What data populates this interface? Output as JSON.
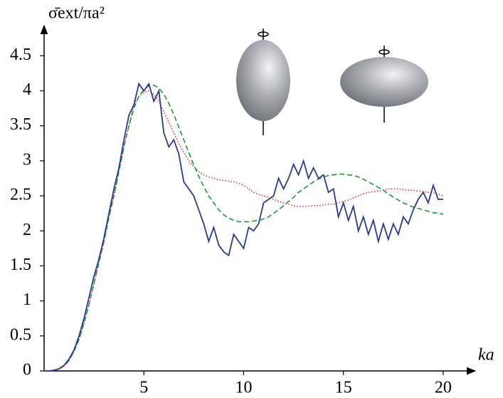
{
  "chart_data": {
    "type": "line",
    "xlabel": "ka",
    "ylabel": "σ̄ext/πa²",
    "x": [
      0,
      0.25,
      0.5,
      0.75,
      1,
      1.25,
      1.5,
      1.75,
      2,
      2.25,
      2.5,
      2.75,
      3,
      3.25,
      3.5,
      3.75,
      4,
      4.25,
      4.5,
      4.75,
      5,
      5.25,
      5.5,
      5.75,
      6,
      6.25,
      6.5,
      6.75,
      7,
      7.25,
      7.5,
      7.75,
      8,
      8.25,
      8.5,
      8.75,
      9,
      9.25,
      9.5,
      9.75,
      10,
      10.25,
      10.5,
      10.75,
      11,
      11.25,
      11.5,
      11.75,
      12,
      12.25,
      12.5,
      12.75,
      13,
      13.25,
      13.5,
      13.75,
      14,
      14.25,
      14.5,
      14.75,
      15,
      15.25,
      15.5,
      15.75,
      16,
      16.25,
      16.5,
      16.75,
      17,
      17.25,
      17.5,
      17.75,
      18,
      18.25,
      18.5,
      18.75,
      19,
      19.25,
      19.5,
      19.75,
      20
    ],
    "series": [
      {
        "color": "#2b3a8f",
        "dash": "none",
        "values": [
          0,
          0,
          0.01,
          0.03,
          0.08,
          0.17,
          0.3,
          0.5,
          0.75,
          1.05,
          1.35,
          1.6,
          1.9,
          2.25,
          2.6,
          2.9,
          3.3,
          3.65,
          3.8,
          4.1,
          4.0,
          4.1,
          3.85,
          4.0,
          3.4,
          3.2,
          3.3,
          3.1,
          2.7,
          2.6,
          2.5,
          2.3,
          2.1,
          1.85,
          2.05,
          1.8,
          1.7,
          1.65,
          1.95,
          1.85,
          1.75,
          2.05,
          2.0,
          2.1,
          2.4,
          2.45,
          2.5,
          2.75,
          2.6,
          2.75,
          2.95,
          2.8,
          3.0,
          2.75,
          2.9,
          2.75,
          2.8,
          2.55,
          2.6,
          2.2,
          2.4,
          2.15,
          2.35,
          2.0,
          2.2,
          1.95,
          2.15,
          1.85,
          2.1,
          1.88,
          2.1,
          1.95,
          2.2,
          2.1,
          2.3,
          2.45,
          2.55,
          2.4,
          2.65,
          2.45,
          2.45
        ]
      },
      {
        "color": "#1a9a3a",
        "dash": "7 4",
        "values": [
          0,
          0,
          0.01,
          0.03,
          0.07,
          0.15,
          0.28,
          0.45,
          0.68,
          0.95,
          1.25,
          1.55,
          1.85,
          2.2,
          2.5,
          2.85,
          3.2,
          3.5,
          3.75,
          3.92,
          4.02,
          4.07,
          4.08,
          4.04,
          3.95,
          3.82,
          3.66,
          3.48,
          3.3,
          3.12,
          2.94,
          2.78,
          2.63,
          2.5,
          2.4,
          2.3,
          2.23,
          2.18,
          2.15,
          2.13,
          2.13,
          2.13,
          2.14,
          2.15,
          2.17,
          2.2,
          2.25,
          2.3,
          2.36,
          2.42,
          2.48,
          2.55,
          2.6,
          2.65,
          2.7,
          2.74,
          2.77,
          2.79,
          2.8,
          2.81,
          2.81,
          2.8,
          2.79,
          2.77,
          2.74,
          2.7,
          2.66,
          2.62,
          2.58,
          2.53,
          2.48,
          2.44,
          2.4,
          2.37,
          2.34,
          2.32,
          2.3,
          2.28,
          2.26,
          2.25,
          2.24
        ]
      },
      {
        "color": "#e0303a",
        "dash": "1.5 2.5",
        "values": [
          0,
          0,
          0.01,
          0.03,
          0.07,
          0.15,
          0.28,
          0.45,
          0.68,
          0.95,
          1.25,
          1.55,
          1.85,
          2.2,
          2.5,
          2.85,
          3.2,
          3.5,
          3.8,
          3.92,
          3.98,
          4.0,
          3.95,
          3.85,
          3.7,
          3.55,
          3.4,
          3.25,
          3.12,
          3.0,
          2.92,
          2.85,
          2.8,
          2.77,
          2.75,
          2.73,
          2.72,
          2.71,
          2.7,
          2.68,
          2.65,
          2.6,
          2.55,
          2.52,
          2.5,
          2.48,
          2.45,
          2.42,
          2.4,
          2.38,
          2.36,
          2.35,
          2.35,
          2.35,
          2.36,
          2.36,
          2.37,
          2.38,
          2.38,
          2.4,
          2.42,
          2.44,
          2.47,
          2.5,
          2.53,
          2.55,
          2.56,
          2.57,
          2.58,
          2.6,
          2.6,
          2.6,
          2.59,
          2.58,
          2.58,
          2.57,
          2.56,
          2.55,
          2.54,
          2.52,
          2.5
        ]
      }
    ],
    "xlim": [
      0,
      21.5
    ],
    "ylim": [
      0,
      4.9
    ],
    "xticks": [
      5,
      10,
      15,
      20
    ],
    "yticks": [
      0,
      0.5,
      1,
      1.5,
      2,
      2.5,
      3,
      3.5,
      4,
      4.5
    ]
  }
}
